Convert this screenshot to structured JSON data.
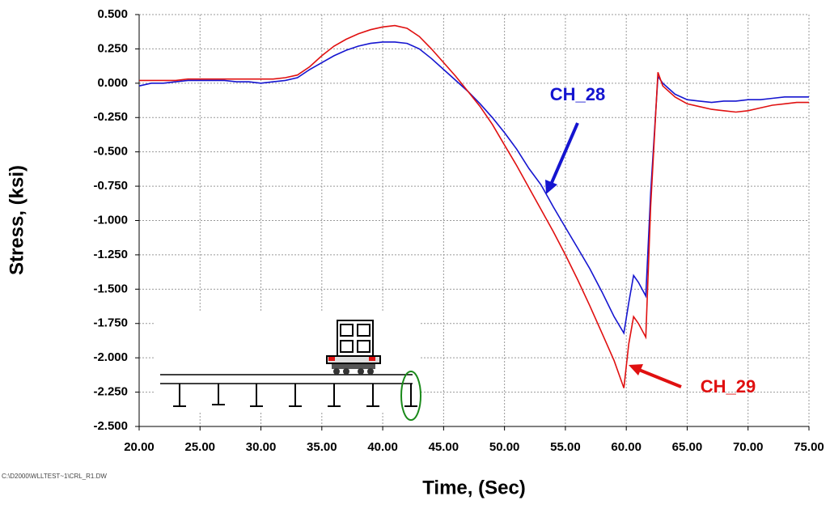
{
  "chart_data": {
    "type": "line",
    "x_label": "Time, (Sec)",
    "y_label": "Stress, (ksi)",
    "footnote": "C:\\D2000\\WLLTEST~1\\CRL_R1.DW",
    "x": [
      20,
      21,
      22,
      23,
      24,
      25,
      26,
      27,
      28,
      29,
      30,
      31,
      32,
      33,
      34,
      35,
      36,
      37,
      38,
      39,
      40,
      41,
      42,
      43,
      44,
      45,
      46,
      47,
      48,
      49,
      50,
      51,
      52,
      53,
      54,
      55,
      56,
      57,
      58,
      59,
      59.8,
      60.2,
      60.6,
      61,
      61.6,
      62,
      62.6,
      63,
      64,
      65,
      66,
      67,
      68,
      69,
      70,
      71,
      72,
      73,
      74,
      75
    ],
    "series": [
      {
        "name": "CH_28",
        "color": "#1515d0",
        "values": [
          -0.02,
          0,
          0,
          0.01,
          0.02,
          0.02,
          0.02,
          0.02,
          0.01,
          0.01,
          0,
          0.01,
          0.02,
          0.04,
          0.1,
          0.15,
          0.2,
          0.24,
          0.27,
          0.29,
          0.3,
          0.3,
          0.29,
          0.25,
          0.18,
          0.1,
          0.02,
          -0.06,
          -0.15,
          -0.25,
          -0.36,
          -0.48,
          -0.62,
          -0.74,
          -0.9,
          -1.05,
          -1.2,
          -1.35,
          -1.52,
          -1.7,
          -1.82,
          -1.6,
          -1.4,
          -1.45,
          -1.55,
          -0.8,
          0.05,
          0,
          -0.08,
          -0.12,
          -0.13,
          -0.14,
          -0.13,
          -0.13,
          -0.12,
          -0.12,
          -0.11,
          -0.1,
          -0.1,
          -0.1
        ]
      },
      {
        "name": "CH_29",
        "color": "#e01010",
        "values": [
          0.02,
          0.02,
          0.02,
          0.02,
          0.03,
          0.03,
          0.03,
          0.03,
          0.03,
          0.03,
          0.03,
          0.03,
          0.04,
          0.06,
          0.12,
          0.2,
          0.27,
          0.32,
          0.36,
          0.39,
          0.41,
          0.42,
          0.4,
          0.34,
          0.25,
          0.15,
          0.05,
          -0.06,
          -0.17,
          -0.3,
          -0.45,
          -0.6,
          -0.76,
          -0.92,
          -1.08,
          -1.25,
          -1.43,
          -1.62,
          -1.82,
          -2.02,
          -2.22,
          -1.9,
          -1.7,
          -1.75,
          -1.85,
          -0.9,
          0.08,
          -0.02,
          -0.1,
          -0.15,
          -0.17,
          -0.19,
          -0.2,
          -0.21,
          -0.2,
          -0.18,
          -0.16,
          -0.15,
          -0.14,
          -0.14
        ]
      }
    ],
    "xlim": [
      20,
      75
    ],
    "ylim": [
      -2.5,
      0.5
    ],
    "xticks": [
      {
        "value": 20,
        "label": "20.00"
      },
      {
        "value": 25,
        "label": "25.00"
      },
      {
        "value": 30,
        "label": "30.00"
      },
      {
        "value": 35,
        "label": "35.00"
      },
      {
        "value": 40,
        "label": "40.00"
      },
      {
        "value": 45,
        "label": "45.00"
      },
      {
        "value": 50,
        "label": "50.00"
      },
      {
        "value": 55,
        "label": "55.00"
      },
      {
        "value": 60,
        "label": "60.00"
      },
      {
        "value": 65,
        "label": "65.00"
      },
      {
        "value": 70,
        "label": "70.00"
      },
      {
        "value": 75,
        "label": "75.00"
      }
    ],
    "yticks": [
      {
        "value": 0.5,
        "label": "0.500"
      },
      {
        "value": 0.25,
        "label": "0.250"
      },
      {
        "value": 0,
        "label": "0.000"
      },
      {
        "value": -0.25,
        "label": "-0.250"
      },
      {
        "value": -0.5,
        "label": "-0.500"
      },
      {
        "value": -0.75,
        "label": "-0.750"
      },
      {
        "value": -1,
        "label": "-1.000"
      },
      {
        "value": -1.25,
        "label": "-1.250"
      },
      {
        "value": -1.5,
        "label": "-1.500"
      },
      {
        "value": -1.75,
        "label": "-1.750"
      },
      {
        "value": -2,
        "label": "-2.000"
      },
      {
        "value": -2.25,
        "label": "-2.250"
      },
      {
        "value": -2.5,
        "label": "-2.500"
      }
    ],
    "grid": true
  }
}
